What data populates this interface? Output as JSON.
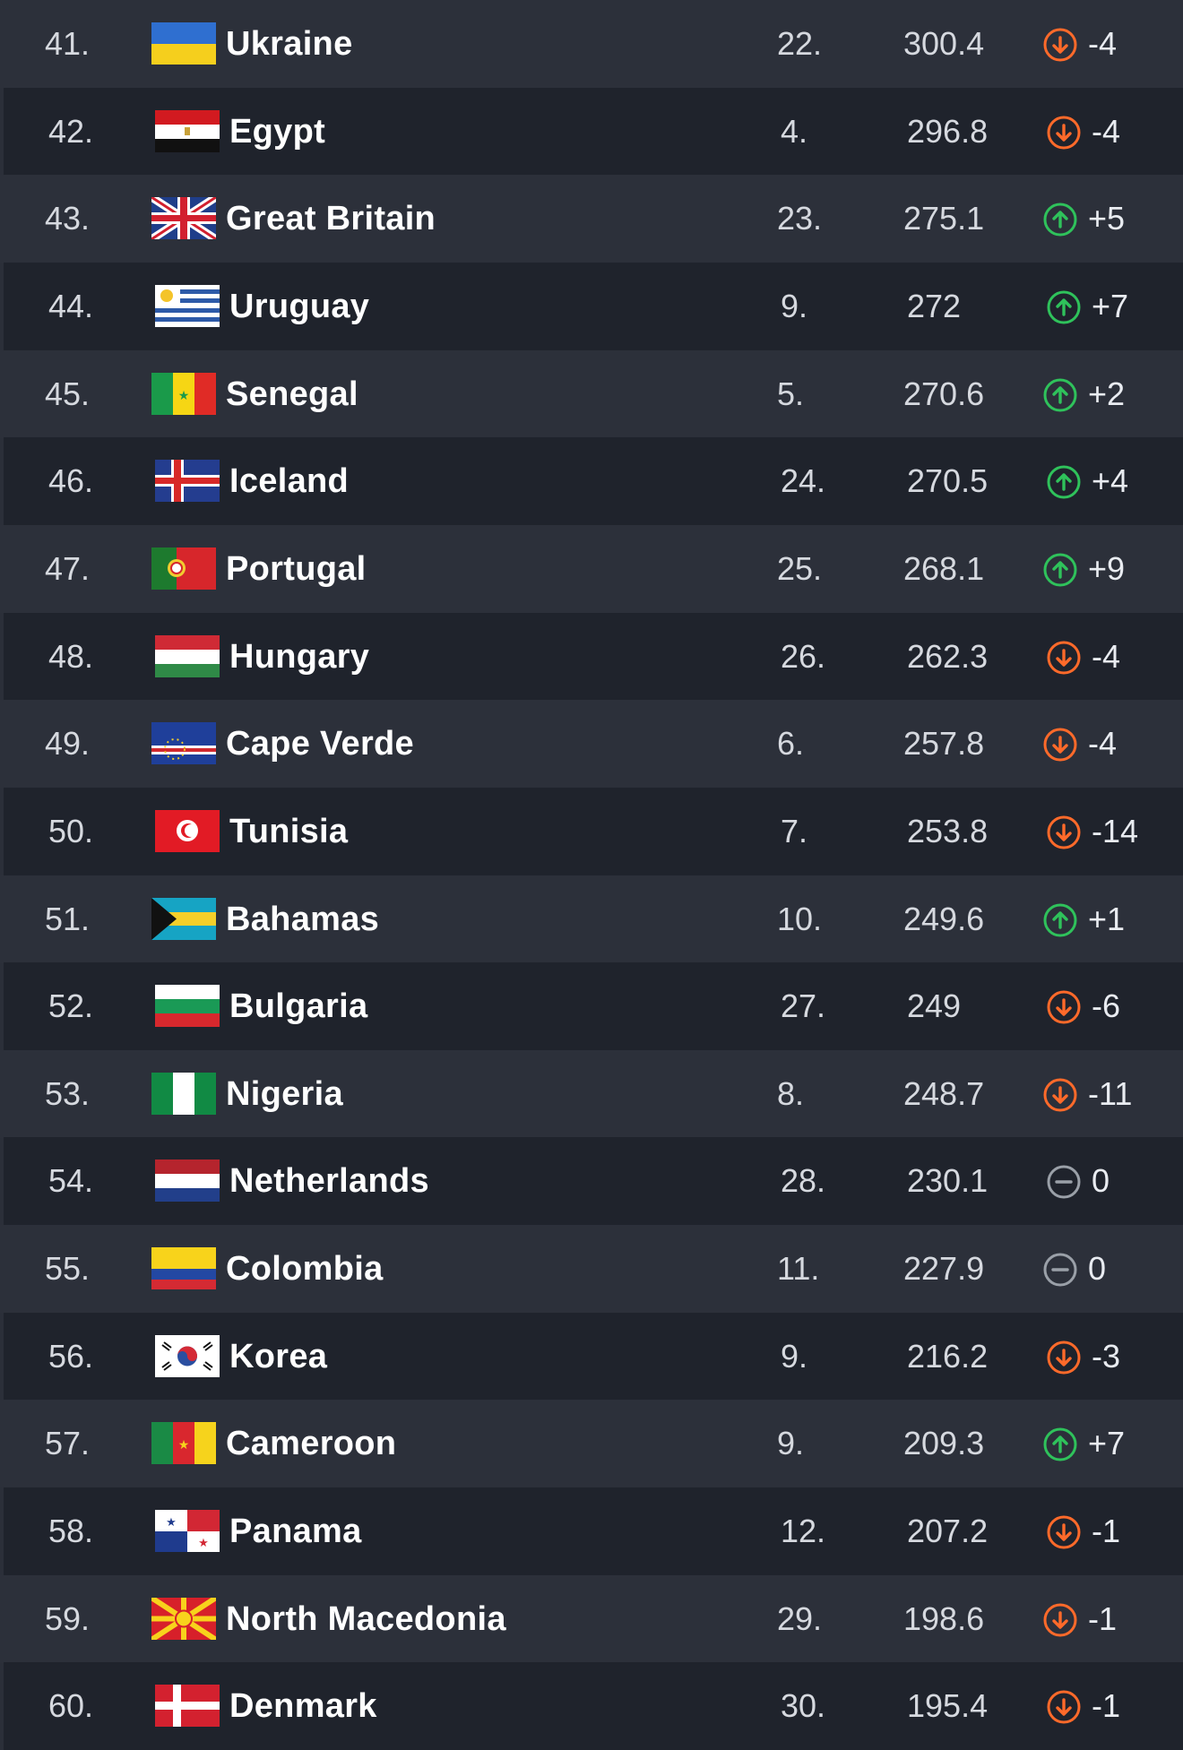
{
  "colors": {
    "up": "#2fc25b",
    "down": "#ff6a2a",
    "same": "#9aa0a8",
    "row_odd": "#2c303a",
    "row_even": "#1f232c"
  },
  "rows": [
    {
      "rank": "41.",
      "country": "Ukraine",
      "sub_rank": "22.",
      "points": "300.4",
      "trend": "down",
      "change": "-4",
      "flag": "ukraine-flag-icon"
    },
    {
      "rank": "42.",
      "country": "Egypt",
      "sub_rank": "4.",
      "points": "296.8",
      "trend": "down",
      "change": "-4",
      "flag": "egypt-flag-icon"
    },
    {
      "rank": "43.",
      "country": "Great Britain",
      "sub_rank": "23.",
      "points": "275.1",
      "trend": "up",
      "change": "+5",
      "flag": "great-britain-flag-icon"
    },
    {
      "rank": "44.",
      "country": "Uruguay",
      "sub_rank": "9.",
      "points": "272",
      "trend": "up",
      "change": "+7",
      "flag": "uruguay-flag-icon"
    },
    {
      "rank": "45.",
      "country": "Senegal",
      "sub_rank": "5.",
      "points": "270.6",
      "trend": "up",
      "change": "+2",
      "flag": "senegal-flag-icon"
    },
    {
      "rank": "46.",
      "country": "Iceland",
      "sub_rank": "24.",
      "points": "270.5",
      "trend": "up",
      "change": "+4",
      "flag": "iceland-flag-icon"
    },
    {
      "rank": "47.",
      "country": "Portugal",
      "sub_rank": "25.",
      "points": "268.1",
      "trend": "up",
      "change": "+9",
      "flag": "portugal-flag-icon"
    },
    {
      "rank": "48.",
      "country": "Hungary",
      "sub_rank": "26.",
      "points": "262.3",
      "trend": "down",
      "change": "-4",
      "flag": "hungary-flag-icon"
    },
    {
      "rank": "49.",
      "country": "Cape Verde",
      "sub_rank": "6.",
      "points": "257.8",
      "trend": "down",
      "change": "-4",
      "flag": "cape-verde-flag-icon"
    },
    {
      "rank": "50.",
      "country": "Tunisia",
      "sub_rank": "7.",
      "points": "253.8",
      "trend": "down",
      "change": "-14",
      "flag": "tunisia-flag-icon"
    },
    {
      "rank": "51.",
      "country": "Bahamas",
      "sub_rank": "10.",
      "points": "249.6",
      "trend": "up",
      "change": "+1",
      "flag": "bahamas-flag-icon"
    },
    {
      "rank": "52.",
      "country": "Bulgaria",
      "sub_rank": "27.",
      "points": "249",
      "trend": "down",
      "change": "-6",
      "flag": "bulgaria-flag-icon"
    },
    {
      "rank": "53.",
      "country": "Nigeria",
      "sub_rank": "8.",
      "points": "248.7",
      "trend": "down",
      "change": "-11",
      "flag": "nigeria-flag-icon"
    },
    {
      "rank": "54.",
      "country": "Netherlands",
      "sub_rank": "28.",
      "points": "230.1",
      "trend": "same",
      "change": "0",
      "flag": "netherlands-flag-icon"
    },
    {
      "rank": "55.",
      "country": "Colombia",
      "sub_rank": "11.",
      "points": "227.9",
      "trend": "same",
      "change": "0",
      "flag": "colombia-flag-icon"
    },
    {
      "rank": "56.",
      "country": "Korea",
      "sub_rank": "9.",
      "points": "216.2",
      "trend": "down",
      "change": "-3",
      "flag": "korea-flag-icon"
    },
    {
      "rank": "57.",
      "country": "Cameroon",
      "sub_rank": "9.",
      "points": "209.3",
      "trend": "up",
      "change": "+7",
      "flag": "cameroon-flag-icon"
    },
    {
      "rank": "58.",
      "country": "Panama",
      "sub_rank": "12.",
      "points": "207.2",
      "trend": "down",
      "change": "-1",
      "flag": "panama-flag-icon"
    },
    {
      "rank": "59.",
      "country": "North Macedonia",
      "sub_rank": "29.",
      "points": "198.6",
      "trend": "down",
      "change": "-1",
      "flag": "north-macedonia-flag-icon"
    },
    {
      "rank": "60.",
      "country": "Denmark",
      "sub_rank": "30.",
      "points": "195.4",
      "trend": "down",
      "change": "-1",
      "flag": "denmark-flag-icon"
    }
  ]
}
